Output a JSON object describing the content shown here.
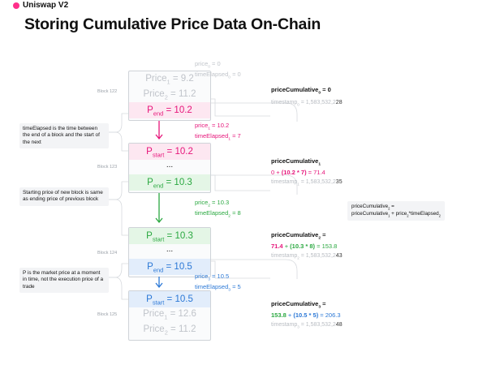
{
  "header": {
    "brand": "Uniswap V2",
    "title": "Storing Cumulative Price Data On-Chain"
  },
  "blocks": [
    {
      "label": "Block 122",
      "rows": [
        {
          "name": "Price",
          "sub": "1",
          "value": "9.2",
          "tone": "grey"
        },
        {
          "name": "Price",
          "sub": "2",
          "value": "11.2",
          "tone": "grey"
        },
        {
          "name": "P",
          "sub": "end",
          "value": "10.2",
          "tone": "pink"
        }
      ]
    },
    {
      "label": "Block 123",
      "rows": [
        {
          "name": "P",
          "sub": "start",
          "value": "10.2",
          "tone": "pink"
        },
        {
          "name": "...",
          "sub": "",
          "value": "",
          "tone": "plain"
        },
        {
          "name": "P",
          "sub": "end",
          "value": "10.3",
          "tone": "green"
        }
      ]
    },
    {
      "label": "Block 124",
      "rows": [
        {
          "name": "P",
          "sub": "start",
          "value": "10.3",
          "tone": "green"
        },
        {
          "name": "...",
          "sub": "",
          "value": "",
          "tone": "plain"
        },
        {
          "name": "P",
          "sub": "end",
          "value": "10.5",
          "tone": "blue"
        }
      ]
    },
    {
      "label": "Block 125",
      "rows": [
        {
          "name": "P",
          "sub": "start",
          "value": "10.5",
          "tone": "blue"
        },
        {
          "name": "Price",
          "sub": "1",
          "value": "12.6",
          "tone": "grey"
        },
        {
          "name": "Price",
          "sub": "2",
          "value": "11.2",
          "tone": "grey"
        }
      ]
    }
  ],
  "notes": [
    "timeElapsed is the time between the end of a block and the start of the next",
    "Starting price of new block is same as ending price of previous block",
    "P is the market price at a moment in time, not the execution price of a trade"
  ],
  "intervals": [
    {
      "price_label": "price",
      "price_sub": "0",
      "price_value": "0",
      "time_label": "timeElapsed",
      "time_sub": "0",
      "time_value": "0",
      "tone": "grey"
    },
    {
      "price_label": "price",
      "price_sub": "1",
      "price_value": "10.2",
      "time_label": "timeElapsed",
      "time_sub": "1",
      "time_value": "7",
      "tone": "pink"
    },
    {
      "price_label": "price",
      "price_sub": "2",
      "price_value": "10.3",
      "time_label": "timeElapsed",
      "time_sub": "2",
      "time_value": "8",
      "tone": "green"
    },
    {
      "price_label": "price",
      "price_sub": "3",
      "price_value": "10.5",
      "time_label": "timeElapsed",
      "time_sub": "3",
      "time_value": "5",
      "tone": "blue"
    }
  ],
  "cumulative": [
    {
      "label": "priceCumulative",
      "sub": "0",
      "eq": " = 0",
      "parts": [],
      "ts_label": "timestamp",
      "ts_sub": "0",
      "ts_value": " = 1,583,532,2",
      "ts_tail": "28"
    },
    {
      "label": "priceCumulative",
      "sub": "1",
      "eq": "",
      "parts": [
        {
          "t": "0 + ",
          "c": "pink"
        },
        {
          "t": "(10.2 * 7)",
          "c": "pink-b"
        },
        {
          "t": " = 71.4",
          "c": "pink"
        }
      ],
      "ts_label": "timestamp",
      "ts_sub": "1",
      "ts_value": " = 1,583,532,2",
      "ts_tail": "35"
    },
    {
      "label": "priceCumulative",
      "sub": "2",
      "eq": " =",
      "parts": [
        {
          "t": "71.4",
          "c": "pink-b"
        },
        {
          "t": " + ",
          "c": "green"
        },
        {
          "t": "(10.3 * 8)",
          "c": "green-b"
        },
        {
          "t": " = 153.8",
          "c": "green"
        }
      ],
      "ts_label": "timestamp",
      "ts_sub": "2",
      "ts_value": " = 1,583,532,2",
      "ts_tail": "43"
    },
    {
      "label": "priceCumulative",
      "sub": "3",
      "eq": " =",
      "parts": [
        {
          "t": "153.8",
          "c": "green-b"
        },
        {
          "t": " + ",
          "c": "blue"
        },
        {
          "t": "(10.5 * 5)",
          "c": "blue-b"
        },
        {
          "t": " = 206.3",
          "c": "blue"
        }
      ],
      "ts_label": "timestamp",
      "ts_sub": "3",
      "ts_value": " = 1,583,532,2",
      "ts_tail": "48"
    }
  ],
  "callout": {
    "line1": "priceCumulative",
    "line1_sub": "2",
    "line1_end": " =",
    "line2": "priceCumulative",
    "line2_sub": "1",
    "line2_mid": " + price",
    "line2_sub2": "2",
    "line2_end": "*timeElapsed",
    "line2_sub3": "2"
  },
  "colors": {
    "pink": "#e6157a",
    "green": "#2aa840",
    "blue": "#2b78d6",
    "grey": "#c0c4ca",
    "muted": "#b8bcc2"
  },
  "icons": [
    "arrow-down-icon",
    "uniswap-logo-icon"
  ]
}
